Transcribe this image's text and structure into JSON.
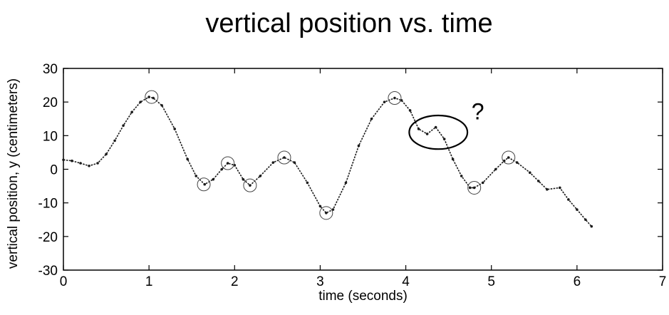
{
  "chart_data": {
    "type": "line",
    "title": "vertical position vs. time",
    "xlabel": "time (seconds)",
    "ylabel": "vertical position, y (centimeters)",
    "xlim": [
      0,
      7
    ],
    "ylim": [
      -30,
      30
    ],
    "xticks": [
      0,
      1,
      2,
      3,
      4,
      5,
      6,
      7
    ],
    "yticks": [
      -30,
      -20,
      -10,
      0,
      10,
      20,
      30
    ],
    "grid": false,
    "line_color": "#1a1a1a",
    "series": [
      {
        "x": [
          0.0,
          0.1,
          0.2,
          0.3,
          0.4,
          0.5,
          0.6,
          0.7,
          0.8,
          0.9,
          1.0,
          1.05,
          1.15,
          1.3,
          1.45,
          1.55,
          1.65,
          1.75,
          1.85,
          1.92,
          2.0,
          2.1,
          2.18,
          2.3,
          2.45,
          2.58,
          2.7,
          2.85,
          3.0,
          3.07,
          3.15,
          3.3,
          3.45,
          3.6,
          3.75,
          3.87,
          3.95,
          4.05,
          4.15,
          4.25,
          4.35,
          4.45,
          4.55,
          4.65,
          4.75,
          4.8,
          4.9,
          5.05,
          5.15,
          5.2,
          5.3,
          5.45,
          5.55,
          5.65,
          5.8,
          5.9,
          6.0,
          6.1,
          6.17
        ],
        "y": [
          2.8,
          2.5,
          1.8,
          1.0,
          1.8,
          4.5,
          8.5,
          13,
          17,
          20,
          21.5,
          21.2,
          19,
          12,
          3,
          -2,
          -4.5,
          -3,
          0,
          1.8,
          1.2,
          -3,
          -4.8,
          -2,
          2,
          3.5,
          2,
          -4,
          -11,
          -13,
          -12,
          -4,
          7,
          15,
          20,
          21.2,
          20.5,
          17.5,
          12,
          10.5,
          12.5,
          9,
          3,
          -2,
          -5.5,
          -5.5,
          -4,
          0,
          2.5,
          3.5,
          2,
          -1,
          -3.5,
          -6,
          -5.5,
          -9,
          -12,
          -15,
          -17
        ]
      }
    ],
    "highlighted_points": [
      {
        "x": 1.03,
        "y": 21.5
      },
      {
        "x": 1.64,
        "y": -4.5
      },
      {
        "x": 1.92,
        "y": 1.8
      },
      {
        "x": 2.18,
        "y": -4.8
      },
      {
        "x": 2.58,
        "y": 3.5
      },
      {
        "x": 3.07,
        "y": -13
      },
      {
        "x": 3.87,
        "y": 21.2
      },
      {
        "x": 4.8,
        "y": -5.5
      },
      {
        "x": 5.2,
        "y": 3.5
      }
    ],
    "annotation": {
      "text": "?",
      "ellipse_center": {
        "x": 4.38,
        "y": 11
      },
      "ellipse_radius": {
        "x": 0.34,
        "y": 5
      },
      "label_anchor": {
        "x": 4.85,
        "y": 17
      }
    }
  }
}
